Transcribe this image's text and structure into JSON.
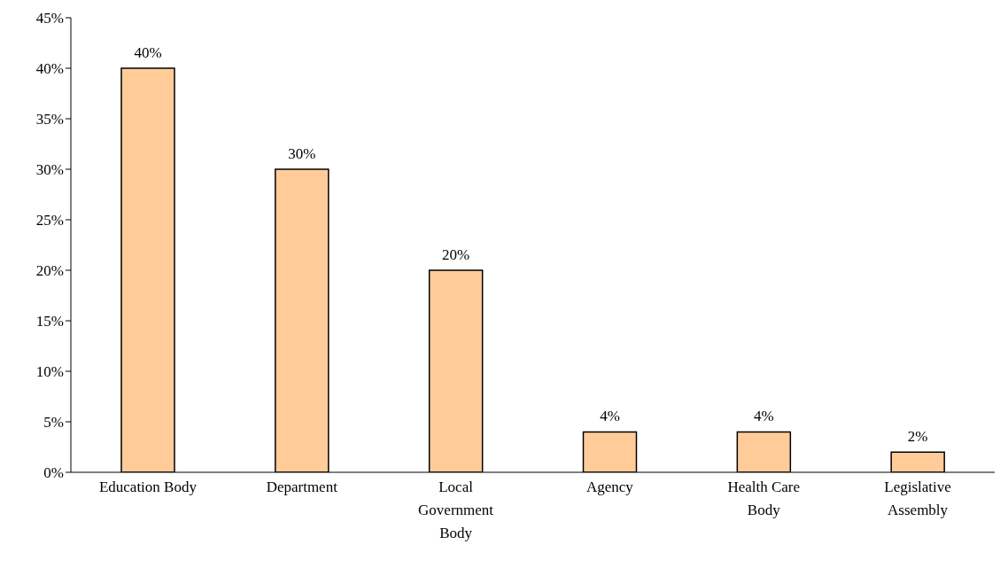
{
  "chart_data": {
    "type": "bar",
    "categories": [
      "Education Body",
      "Department",
      "Local Government Body",
      "Agency",
      "Health Care Body",
      "Legislative Assembly"
    ],
    "values": [
      40,
      30,
      20,
      4,
      4,
      2
    ],
    "value_labels": [
      "40%",
      "30%",
      "20%",
      "4%",
      "4%",
      "2%"
    ],
    "color": "#ffcc99",
    "ylim": [
      0,
      45
    ],
    "yticks": [
      {
        "value": 0,
        "label": "0%"
      },
      {
        "value": 5,
        "label": "5%"
      },
      {
        "value": 10,
        "label": "10%"
      },
      {
        "value": 15,
        "label": "15%"
      },
      {
        "value": 20,
        "label": "20%"
      },
      {
        "value": 25,
        "label": "25%"
      },
      {
        "value": 30,
        "label": "30%"
      },
      {
        "value": 35,
        "label": "35%"
      },
      {
        "value": 40,
        "label": "40%"
      },
      {
        "value": 45,
        "label": "45%"
      }
    ],
    "grid": false,
    "legend": false
  }
}
